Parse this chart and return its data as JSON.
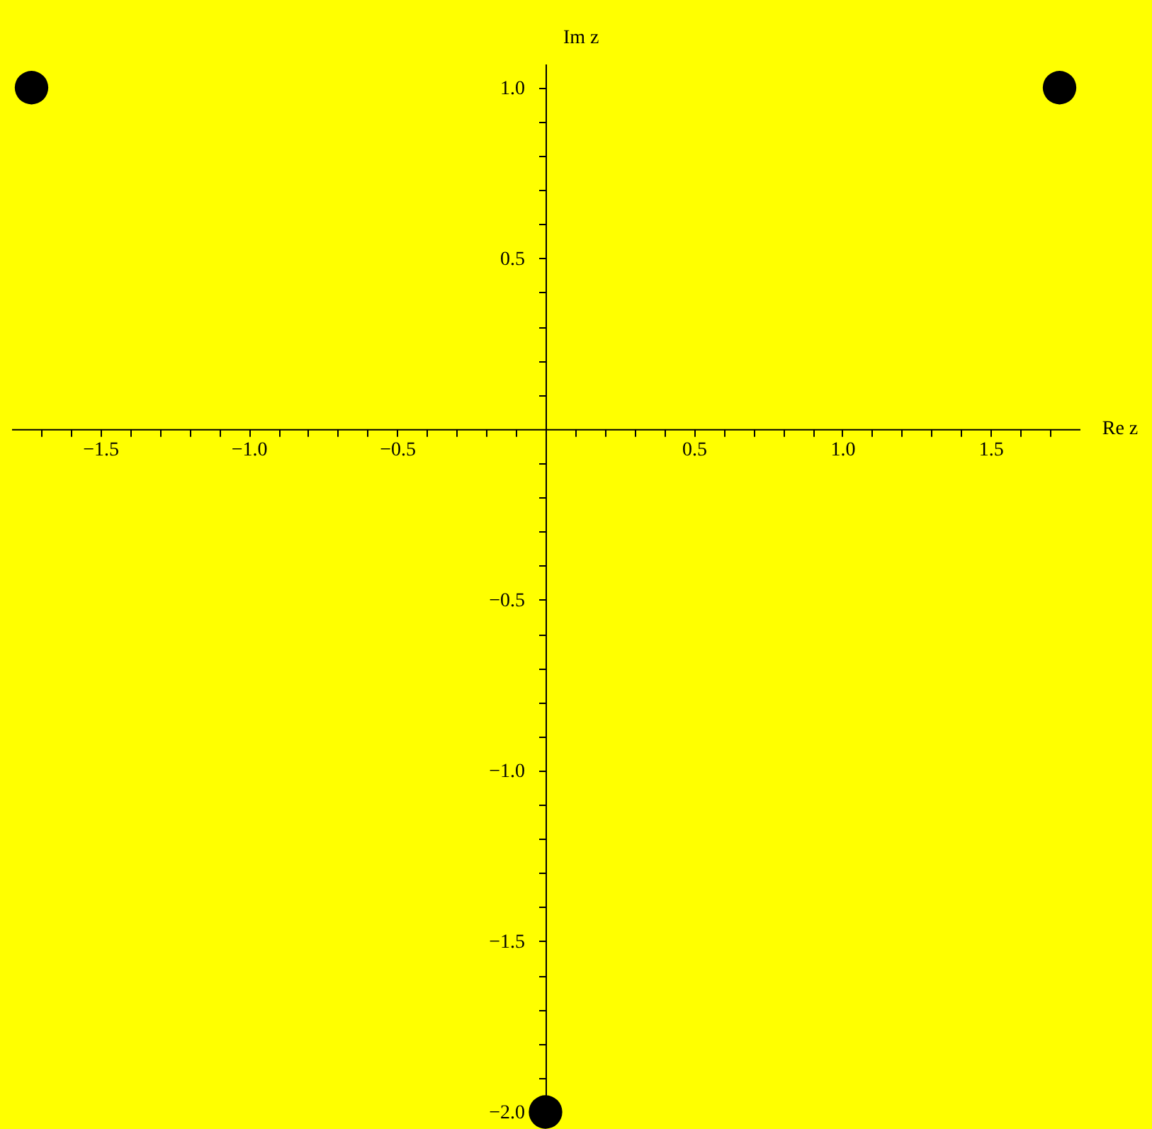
{
  "chart_data": {
    "type": "scatter",
    "xlabel": "Re z",
    "ylabel": "Im z",
    "x": [
      -1.732,
      1.732,
      0
    ],
    "series": [
      {
        "color": "#000000",
        "values": [
          1,
          1,
          -2
        ]
      }
    ],
    "marker": "circle",
    "grid": false,
    "xlim": [
      -1.8,
      1.8
    ],
    "ylim": [
      -2.0,
      1.07
    ],
    "xticks": [
      {
        "value": -1.7,
        "label": null
      },
      {
        "value": -1.6,
        "label": null
      },
      {
        "value": -1.5,
        "label": "−1.5"
      },
      {
        "value": -1.4,
        "label": null
      },
      {
        "value": -1.3,
        "label": null
      },
      {
        "value": -1.2,
        "label": null
      },
      {
        "value": -1.1,
        "label": null
      },
      {
        "value": -1.0,
        "label": "−1.0"
      },
      {
        "value": -0.9,
        "label": null
      },
      {
        "value": -0.8,
        "label": null
      },
      {
        "value": -0.7,
        "label": null
      },
      {
        "value": -0.6,
        "label": null
      },
      {
        "value": -0.5,
        "label": "−0.5"
      },
      {
        "value": -0.4,
        "label": null
      },
      {
        "value": -0.3,
        "label": null
      },
      {
        "value": -0.2,
        "label": null
      },
      {
        "value": -0.1,
        "label": null
      },
      {
        "value": 0.1,
        "label": null
      },
      {
        "value": 0.2,
        "label": null
      },
      {
        "value": 0.3,
        "label": null
      },
      {
        "value": 0.4,
        "label": null
      },
      {
        "value": 0.5,
        "label": "0.5"
      },
      {
        "value": 0.6,
        "label": null
      },
      {
        "value": 0.7,
        "label": null
      },
      {
        "value": 0.8,
        "label": null
      },
      {
        "value": 0.9,
        "label": null
      },
      {
        "value": 1.0,
        "label": "1.0"
      },
      {
        "value": 1.1,
        "label": null
      },
      {
        "value": 1.2,
        "label": null
      },
      {
        "value": 1.3,
        "label": null
      },
      {
        "value": 1.4,
        "label": null
      },
      {
        "value": 1.5,
        "label": "1.5"
      },
      {
        "value": 1.6,
        "label": null
      },
      {
        "value": 1.7,
        "label": null
      }
    ],
    "yticks": [
      {
        "value": -2.0,
        "label": "−2.0"
      },
      {
        "value": -1.9,
        "label": null
      },
      {
        "value": -1.8,
        "label": null
      },
      {
        "value": -1.7,
        "label": null
      },
      {
        "value": -1.6,
        "label": null
      },
      {
        "value": -1.5,
        "label": "−1.5"
      },
      {
        "value": -1.4,
        "label": null
      },
      {
        "value": -1.3,
        "label": null
      },
      {
        "value": -1.2,
        "label": null
      },
      {
        "value": -1.1,
        "label": null
      },
      {
        "value": -1.0,
        "label": "−1.0"
      },
      {
        "value": -0.9,
        "label": null
      },
      {
        "value": -0.8,
        "label": null
      },
      {
        "value": -0.7,
        "label": null
      },
      {
        "value": -0.6,
        "label": null
      },
      {
        "value": -0.5,
        "label": "−0.5"
      },
      {
        "value": -0.4,
        "label": null
      },
      {
        "value": -0.3,
        "label": null
      },
      {
        "value": -0.2,
        "label": null
      },
      {
        "value": -0.1,
        "label": null
      },
      {
        "value": 0.1,
        "label": null
      },
      {
        "value": 0.2,
        "label": null
      },
      {
        "value": 0.3,
        "label": null
      },
      {
        "value": 0.4,
        "label": null
      },
      {
        "value": 0.5,
        "label": "0.5"
      },
      {
        "value": 0.6,
        "label": null
      },
      {
        "value": 0.7,
        "label": null
      },
      {
        "value": 0.8,
        "label": null
      },
      {
        "value": 0.9,
        "label": null
      },
      {
        "value": 1.0,
        "label": "1.0"
      }
    ]
  }
}
